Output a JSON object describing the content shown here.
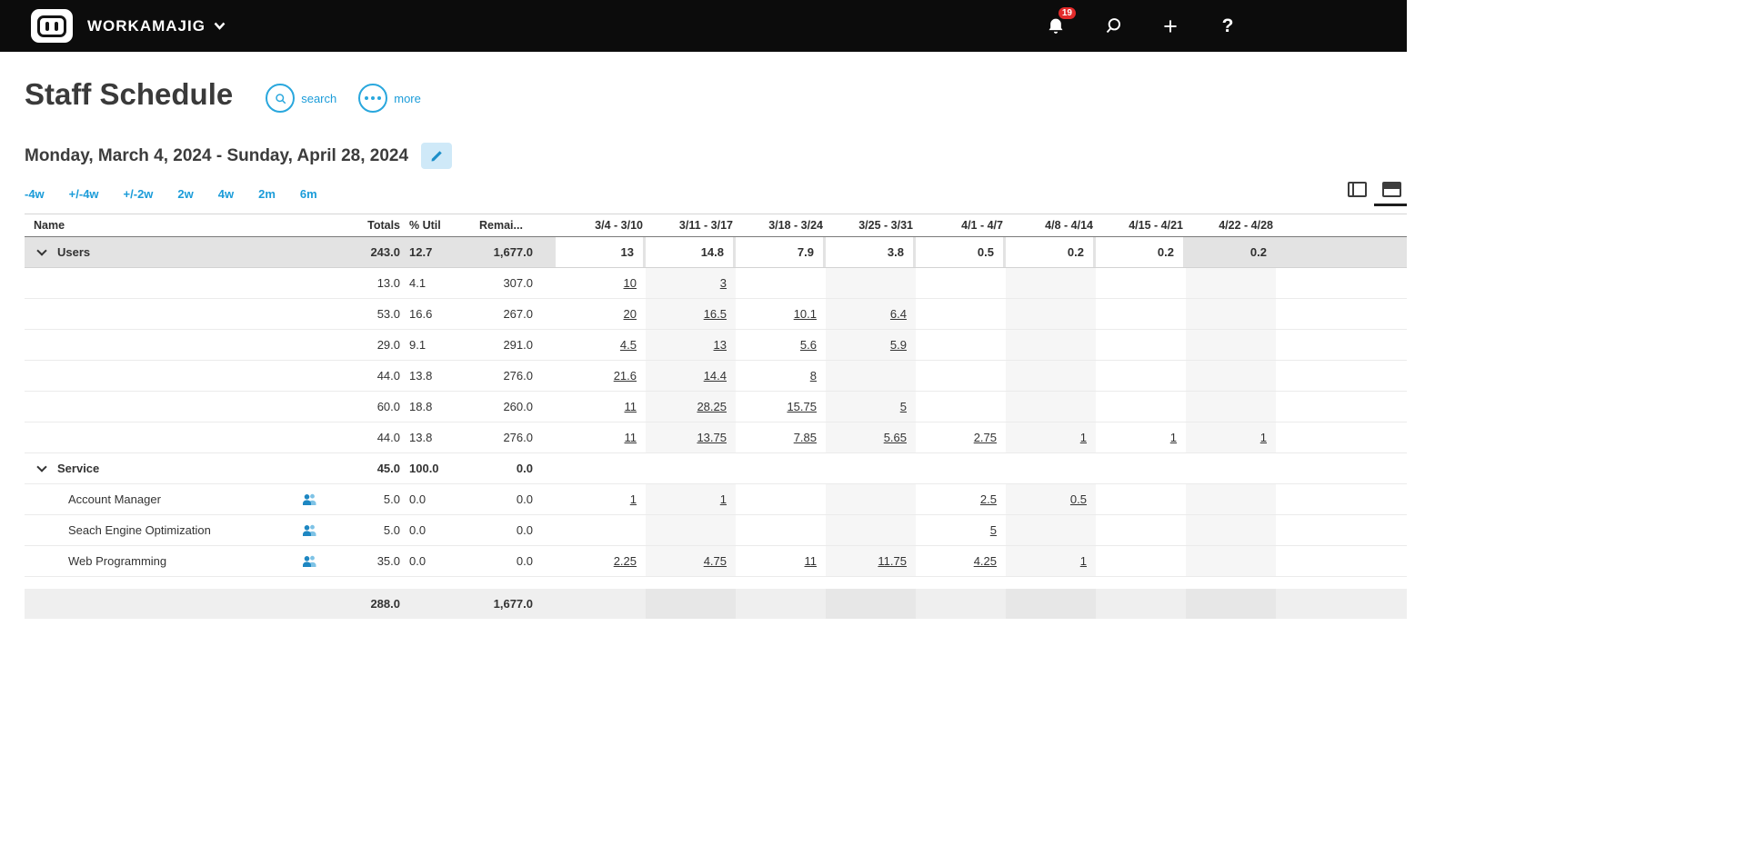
{
  "topbar": {
    "brand": "WORKAMAJIG",
    "notification_count": "19",
    "icons": {
      "add_glyph": "+",
      "help_glyph": "?"
    }
  },
  "page": {
    "title": "Staff Schedule",
    "actions": {
      "search_label": "search",
      "more_label": "more"
    },
    "date_range": "Monday, March 4, 2024 - Sunday, April 28, 2024",
    "range_links": [
      "-4w",
      "+/-4w",
      "+/-2w",
      "2w",
      "4w",
      "2m",
      "6m"
    ]
  },
  "table": {
    "columns": [
      "Name",
      "Totals",
      "% Util",
      "Remai...",
      "3/4 - 3/10",
      "3/11 - 3/17",
      "3/18 - 3/24",
      "3/25 - 3/31",
      "4/1 - 4/7",
      "4/8 - 4/14",
      "4/15 - 4/21",
      "4/22 - 4/28"
    ],
    "rows": [
      {
        "type": "group",
        "shaded": true,
        "name": "Users",
        "totals": "243.0",
        "util": "12.7",
        "remaining": "1,677.0",
        "weeks": [
          "13",
          "14.8",
          "7.9",
          "3.8",
          "0.5",
          "0.2",
          "0.2",
          "0.2"
        ]
      },
      {
        "type": "user",
        "name": "",
        "totals": "13.0",
        "util": "4.1",
        "remaining": "307.0",
        "weeks": [
          "10",
          "3",
          "",
          "",
          "",
          "",
          "",
          ""
        ]
      },
      {
        "type": "user",
        "name": "",
        "totals": "53.0",
        "util": "16.6",
        "remaining": "267.0",
        "weeks": [
          "20",
          "16.5",
          "10.1",
          "6.4",
          "",
          "",
          "",
          ""
        ]
      },
      {
        "type": "user",
        "name": "",
        "totals": "29.0",
        "util": "9.1",
        "remaining": "291.0",
        "weeks": [
          "4.5",
          "13",
          "5.6",
          "5.9",
          "",
          "",
          "",
          ""
        ]
      },
      {
        "type": "user",
        "name": "",
        "totals": "44.0",
        "util": "13.8",
        "remaining": "276.0",
        "weeks": [
          "21.6",
          "14.4",
          "8",
          "",
          "",
          "",
          "",
          ""
        ]
      },
      {
        "type": "user",
        "name": "",
        "totals": "60.0",
        "util": "18.8",
        "remaining": "260.0",
        "weeks": [
          "11",
          "28.25",
          "15.75",
          "5",
          "",
          "",
          "",
          ""
        ]
      },
      {
        "type": "user",
        "name": "",
        "totals": "44.0",
        "util": "13.8",
        "remaining": "276.0",
        "weeks": [
          "11",
          "13.75",
          "7.85",
          "5.65",
          "2.75",
          "1",
          "1",
          "1"
        ]
      },
      {
        "type": "group",
        "name": "Service",
        "totals": "45.0",
        "util": "100.0",
        "remaining": "0.0",
        "weeks": [
          "",
          "",
          "",
          "",
          "",
          "",
          "",
          ""
        ]
      },
      {
        "type": "service",
        "name": "Account Manager",
        "icon": "people-icon",
        "totals": "5.0",
        "util": "0.0",
        "remaining": "0.0",
        "weeks": [
          "1",
          "1",
          "",
          "",
          "2.5",
          "0.5",
          "",
          ""
        ]
      },
      {
        "type": "service",
        "name": "Seach Engine Optimization",
        "icon": "people-icon",
        "totals": "5.0",
        "util": "0.0",
        "remaining": "0.0",
        "weeks": [
          "",
          "",
          "",
          "",
          "5",
          "",
          "",
          ""
        ]
      },
      {
        "type": "service",
        "name": "Web Programming",
        "icon": "people-icon",
        "totals": "35.0",
        "util": "0.0",
        "remaining": "0.0",
        "weeks": [
          "2.25",
          "4.75",
          "11",
          "11.75",
          "4.25",
          "1",
          "",
          ""
        ]
      }
    ],
    "footer": {
      "totals": "288.0",
      "remaining": "1,677.0"
    }
  },
  "colors": {
    "accent": "#29a7dd",
    "link": "#1b9cd9",
    "badge": "#e22a2a",
    "topbar": "#0c0c0c"
  }
}
